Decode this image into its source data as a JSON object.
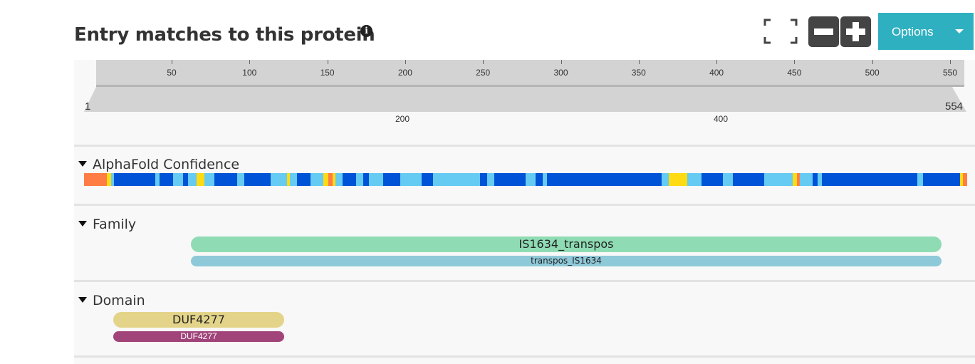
{
  "header": {
    "title": "Entry matches to this protein",
    "info_icon": "info-circle-icon",
    "fullscreen_icon": "fullscreen-icon",
    "zoom_out_icon": "minus-icon",
    "zoom_in_icon": "plus-icon",
    "options_label": "Options",
    "options_color": "#2eb0c0"
  },
  "ruler": {
    "ticks": [
      "50",
      "100",
      "150",
      "200",
      "250",
      "300",
      "350",
      "400",
      "450",
      "500",
      "550"
    ],
    "start": "1",
    "end": "554",
    "nav_labels": [
      "200",
      "400"
    ]
  },
  "tracks": {
    "alphafold": {
      "label": "AlphaFold Confidence",
      "colors": {
        "very_high": "#0053d6",
        "confident": "#65cbf3",
        "low": "#ffdb13",
        "very_low": "#ff7d45"
      }
    },
    "family": {
      "label": "Family",
      "features": [
        {
          "label": "IS1634_transpos",
          "color": "#8fdcb4"
        },
        {
          "label": "transpos_IS1634",
          "color": "#8ec9d9"
        }
      ]
    },
    "domain": {
      "label": "Domain",
      "features": [
        {
          "label": "DUF4277",
          "color": "#e4d48a"
        },
        {
          "label": "DUF4277",
          "color": "#a0447a"
        }
      ]
    }
  }
}
